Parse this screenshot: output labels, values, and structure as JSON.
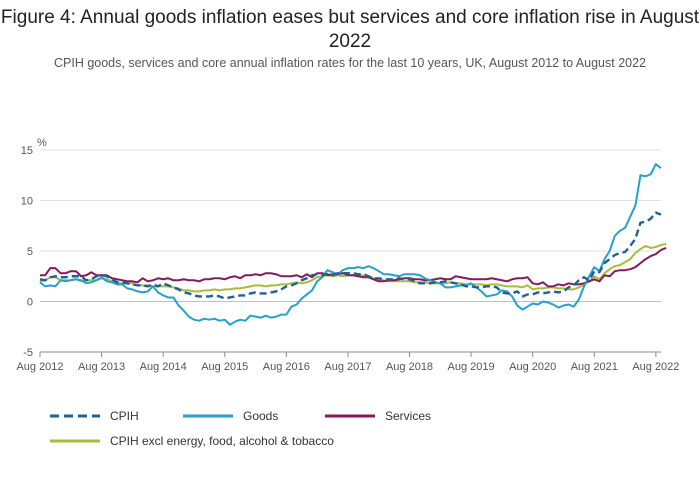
{
  "title": "Figure 4: Annual goods inflation eases but services and core inflation rise in August 2022",
  "subtitle": "CPIH goods, services and core annual inflation rates for the last 10 years, UK, August 2012 to August 2022",
  "chart_data": {
    "type": "line",
    "ylabel": "%",
    "ylim": [
      -5,
      15
    ],
    "yticks": [
      "15",
      "10",
      "5",
      "0",
      "-5"
    ],
    "xticks": [
      "Aug 2012",
      "Aug 2013",
      "Aug 2014",
      "Aug 2015",
      "Aug 2016",
      "Aug 2017",
      "Aug 2018",
      "Aug 2019",
      "Aug 2020",
      "Aug 2021",
      "Aug 2022"
    ],
    "x_start": 2012.5833,
    "x_end": 2022.5833,
    "x_step_months": 1,
    "series": [
      {
        "name": "CPIH",
        "color": "#206095",
        "dash": true,
        "values": [
          2.2,
          2.1,
          2.4,
          2.5,
          2.4,
          2.4,
          2.5,
          2.5,
          2.5,
          2.1,
          2.2,
          2.5,
          2.6,
          2.5,
          2.2,
          1.9,
          1.9,
          1.8,
          1.7,
          1.6,
          1.6,
          1.5,
          1.7,
          1.5,
          1.8,
          1.6,
          1.4,
          1.2,
          0.9,
          0.8,
          0.6,
          0.5,
          0.5,
          0.5,
          0.6,
          0.5,
          0.3,
          0.4,
          0.5,
          0.6,
          0.6,
          0.8,
          0.9,
          0.8,
          0.8,
          0.9,
          1.0,
          1.2,
          1.5,
          1.6,
          1.8,
          2.1,
          2.3,
          2.6,
          2.7,
          2.6,
          2.7,
          2.6,
          2.8,
          2.8,
          2.8,
          2.8,
          2.7,
          2.7,
          2.5,
          2.3,
          2.3,
          2.2,
          2.2,
          2.2,
          2.3,
          2.2,
          2.2,
          2.0,
          1.8,
          1.8,
          1.8,
          1.9,
          1.9,
          2.0,
          1.9,
          1.8,
          1.7,
          1.5,
          1.5,
          1.4,
          1.4,
          1.5,
          1.5,
          1.4,
          0.9,
          0.8,
          0.8,
          1.0,
          0.5,
          0.7,
          0.7,
          0.9,
          0.8,
          0.9,
          1.0,
          0.9,
          1.0,
          1.4,
          1.6,
          2.1,
          2.4,
          2.1,
          3.0,
          2.9,
          3.8,
          4.2,
          4.6,
          4.8,
          4.9,
          5.5,
          6.2,
          7.8,
          7.9,
          8.2,
          8.8,
          8.6
        ]
      },
      {
        "name": "Goods",
        "color": "#27a0cc",
        "dash": false,
        "values": [
          1.9,
          1.5,
          1.6,
          1.5,
          2.1,
          2.0,
          2.1,
          2.2,
          2.1,
          1.8,
          1.9,
          2.1,
          2.4,
          2.0,
          1.9,
          1.7,
          1.7,
          1.3,
          1.2,
          1.0,
          0.9,
          1.0,
          1.5,
          0.9,
          0.6,
          0.4,
          0.4,
          -0.4,
          -0.9,
          -1.5,
          -1.8,
          -1.9,
          -1.7,
          -1.8,
          -1.7,
          -1.9,
          -1.8,
          -2.3,
          -2.0,
          -1.8,
          -1.9,
          -1.4,
          -1.5,
          -1.6,
          -1.4,
          -1.6,
          -1.5,
          -1.3,
          -1.3,
          -0.5,
          -0.3,
          0.3,
          0.7,
          1.1,
          2.0,
          2.4,
          3.1,
          2.9,
          2.7,
          3.1,
          3.3,
          3.3,
          3.4,
          3.3,
          3.5,
          3.3,
          3.0,
          2.7,
          2.7,
          2.6,
          2.5,
          2.7,
          2.7,
          2.7,
          2.6,
          2.3,
          2.1,
          1.9,
          1.8,
          1.4,
          1.4,
          1.5,
          1.6,
          1.6,
          1.8,
          1.4,
          1.0,
          0.5,
          0.6,
          0.7,
          1.1,
          1.0,
          0.5,
          -0.4,
          -0.8,
          -0.5,
          -0.2,
          -0.3,
          0.0,
          -0.1,
          -0.3,
          -0.6,
          -0.4,
          -0.3,
          -0.5,
          0.2,
          1.5,
          2.5,
          3.4,
          3.0,
          4.2,
          5.0,
          6.5,
          7.0,
          7.3,
          8.4,
          9.5,
          12.5,
          12.4,
          12.6,
          13.6,
          13.2
        ]
      },
      {
        "name": "Services",
        "color": "#871a5b",
        "dash": false,
        "values": [
          2.6,
          2.6,
          3.3,
          3.3,
          2.8,
          2.8,
          3.0,
          3.0,
          2.5,
          2.6,
          2.9,
          2.6,
          2.6,
          2.6,
          2.3,
          2.2,
          2.1,
          2.0,
          2.0,
          1.9,
          2.3,
          2.0,
          2.1,
          2.3,
          2.2,
          2.3,
          2.1,
          2.1,
          2.2,
          2.1,
          2.1,
          2.0,
          2.2,
          2.2,
          2.3,
          2.3,
          2.2,
          2.4,
          2.5,
          2.3,
          2.6,
          2.6,
          2.7,
          2.6,
          2.8,
          2.8,
          2.7,
          2.5,
          2.5,
          2.5,
          2.6,
          2.4,
          2.7,
          2.4,
          2.8,
          2.8,
          2.6,
          2.7,
          2.7,
          2.8,
          2.6,
          2.6,
          2.5,
          2.4,
          2.4,
          2.2,
          2.0,
          2.0,
          2.1,
          2.1,
          2.2,
          2.3,
          2.3,
          2.2,
          2.2,
          2.1,
          2.1,
          2.2,
          2.3,
          2.2,
          2.2,
          2.5,
          2.4,
          2.3,
          2.2,
          2.2,
          2.2,
          2.2,
          2.3,
          2.2,
          2.1,
          2.0,
          2.2,
          2.3,
          2.3,
          2.4,
          1.8,
          1.7,
          1.9,
          1.5,
          1.5,
          1.7,
          1.6,
          1.8,
          1.7,
          1.7,
          1.8,
          2.0,
          2.2,
          2.0,
          2.6,
          2.5,
          3.0,
          3.1,
          3.1,
          3.2,
          3.4,
          3.8,
          4.2,
          4.5,
          4.7,
          5.1,
          5.3
        ]
      },
      {
        "name": "CPIH excl energy, food, alcohol & tobacco",
        "color": "#a8bd3a",
        "dash": false,
        "values": [
          2.0,
          2.1,
          2.4,
          2.4,
          2.1,
          2.1,
          2.1,
          2.2,
          2.0,
          2.1,
          2.1,
          2.1,
          2.3,
          2.2,
          2.0,
          1.8,
          1.8,
          1.8,
          1.8,
          1.6,
          1.6,
          1.6,
          1.5,
          1.5,
          1.5,
          1.5,
          1.4,
          1.3,
          1.1,
          1.1,
          1.0,
          1.0,
          1.1,
          1.1,
          1.2,
          1.1,
          1.2,
          1.2,
          1.3,
          1.3,
          1.4,
          1.5,
          1.6,
          1.6,
          1.5,
          1.6,
          1.6,
          1.7,
          1.7,
          1.8,
          1.9,
          1.8,
          1.9,
          2.1,
          2.4,
          2.5,
          2.6,
          2.5,
          2.6,
          2.5,
          2.6,
          2.6,
          2.5,
          2.6,
          2.5,
          2.3,
          2.1,
          2.1,
          2.0,
          2.0,
          2.0,
          2.0,
          2.0,
          1.9,
          1.9,
          1.9,
          1.8,
          1.8,
          1.8,
          1.8,
          1.9,
          1.8,
          1.8,
          1.7,
          1.7,
          1.7,
          1.7,
          1.6,
          1.7,
          1.7,
          1.6,
          1.5,
          1.5,
          1.5,
          1.4,
          1.6,
          1.2,
          1.3,
          1.3,
          1.4,
          1.4,
          1.3,
          1.3,
          1.2,
          1.2,
          1.4,
          1.7,
          2.0,
          2.5,
          2.2,
          2.8,
          3.2,
          3.5,
          3.6,
          3.9,
          4.2,
          4.8,
          5.2,
          5.5,
          5.3,
          5.4,
          5.6,
          5.7
        ]
      }
    ]
  }
}
